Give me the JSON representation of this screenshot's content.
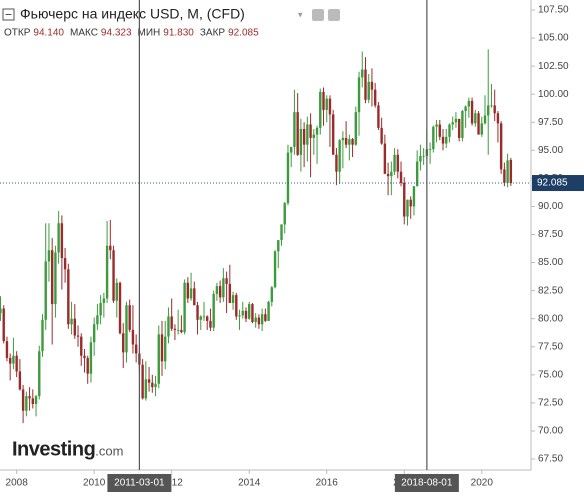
{
  "chart_data": {
    "type": "candlestick",
    "title": "Фьючерс на индекс USD, M, (CFD)",
    "header": [
      {
        "name": "ОТКР",
        "value": "94.140"
      },
      {
        "name": "МАКС",
        "value": "94.323"
      },
      {
        "name": "МИН",
        "value": "91.830"
      },
      {
        "name": "ЗАКР",
        "value": "92.085"
      }
    ],
    "logo": [
      "Investing",
      ".com"
    ],
    "up_color": "#3d9b3d",
    "down_color": "#9b2b2b",
    "x": [
      "2007-08",
      "2007-09",
      "2007-10",
      "2007-11",
      "2007-12",
      "2008-01",
      "2008-02",
      "2008-03",
      "2008-04",
      "2008-05",
      "2008-06",
      "2008-07",
      "2008-08",
      "2008-09",
      "2008-10",
      "2008-11",
      "2008-12",
      "2009-01",
      "2009-02",
      "2009-03",
      "2009-04",
      "2009-05",
      "2009-06",
      "2009-07",
      "2009-08",
      "2009-09",
      "2009-10",
      "2009-11",
      "2009-12",
      "2010-01",
      "2010-02",
      "2010-03",
      "2010-04",
      "2010-05",
      "2010-06",
      "2010-07",
      "2010-08",
      "2010-09",
      "2010-10",
      "2010-11",
      "2010-12",
      "2011-01",
      "2011-02",
      "2011-03",
      "2011-04",
      "2011-05",
      "2011-06",
      "2011-07",
      "2011-08",
      "2011-09",
      "2011-10",
      "2011-11",
      "2011-12",
      "2012-01",
      "2012-02",
      "2012-03",
      "2012-04",
      "2012-05",
      "2012-06",
      "2012-07",
      "2012-08",
      "2012-09",
      "2012-10",
      "2012-11",
      "2012-12",
      "2013-01",
      "2013-02",
      "2013-03",
      "2013-04",
      "2013-05",
      "2013-06",
      "2013-07",
      "2013-08",
      "2013-09",
      "2013-10",
      "2013-11",
      "2013-12",
      "2014-01",
      "2014-02",
      "2014-03",
      "2014-04",
      "2014-05",
      "2014-06",
      "2014-07",
      "2014-08",
      "2014-09",
      "2014-10",
      "2014-11",
      "2014-12",
      "2015-01",
      "2015-02",
      "2015-03",
      "2015-04",
      "2015-05",
      "2015-06",
      "2015-07",
      "2015-08",
      "2015-09",
      "2015-10",
      "2015-11",
      "2015-12",
      "2016-01",
      "2016-02",
      "2016-03",
      "2016-04",
      "2016-05",
      "2016-06",
      "2016-07",
      "2016-08",
      "2016-09",
      "2016-10",
      "2016-11",
      "2016-12",
      "2017-01",
      "2017-02",
      "2017-03",
      "2017-04",
      "2017-05",
      "2017-06",
      "2017-07",
      "2017-08",
      "2017-09",
      "2017-10",
      "2017-11",
      "2017-12",
      "2018-01",
      "2018-02",
      "2018-03",
      "2018-04",
      "2018-05",
      "2018-06",
      "2018-07",
      "2018-08",
      "2018-09",
      "2018-10",
      "2018-11",
      "2018-12",
      "2019-01",
      "2019-02",
      "2019-03",
      "2019-04",
      "2019-05",
      "2019-06",
      "2019-07",
      "2019-08",
      "2019-09",
      "2019-10",
      "2019-11",
      "2019-12",
      "2020-01",
      "2020-02",
      "2020-03",
      "2020-04",
      "2020-05",
      "2020-06",
      "2020-07",
      "2020-08",
      "2020-09",
      "2020-10"
    ],
    "ohlc": [
      [
        80.5,
        82.0,
        79.8,
        80.9
      ],
      [
        80.9,
        81.2,
        77.8,
        78.0
      ],
      [
        78.0,
        78.4,
        76.2,
        76.5
      ],
      [
        76.5,
        76.9,
        74.5,
        76.0
      ],
      [
        76.0,
        78.3,
        75.5,
        76.7
      ],
      [
        76.7,
        77.1,
        74.8,
        75.3
      ],
      [
        75.3,
        76.4,
        73.6,
        73.7
      ],
      [
        73.7,
        74.1,
        70.7,
        71.8
      ],
      [
        71.8,
        73.5,
        71.3,
        73.1
      ],
      [
        73.1,
        73.9,
        71.8,
        72.9
      ],
      [
        72.9,
        73.7,
        72.0,
        72.4
      ],
      [
        72.4,
        73.2,
        71.3,
        73.1
      ],
      [
        73.1,
        77.6,
        72.8,
        77.1
      ],
      [
        77.1,
        80.4,
        76.6,
        79.9
      ],
      [
        79.9,
        88.5,
        79.0,
        85.1
      ],
      [
        85.1,
        88.5,
        83.3,
        86.1
      ],
      [
        86.1,
        87.2,
        77.7,
        81.3
      ],
      [
        81.3,
        86.5,
        80.1,
        85.9
      ],
      [
        85.9,
        89.6,
        84.9,
        88.5
      ],
      [
        88.5,
        89.2,
        82.6,
        85.4
      ],
      [
        85.4,
        86.3,
        83.2,
        84.4
      ],
      [
        84.4,
        84.9,
        79.1,
        79.5
      ],
      [
        79.5,
        81.5,
        78.6,
        80.0
      ],
      [
        80.0,
        81.3,
        78.2,
        78.5
      ],
      [
        78.5,
        79.4,
        77.5,
        78.4
      ],
      [
        78.4,
        78.7,
        75.8,
        76.7
      ],
      [
        76.7,
        77.3,
        75.2,
        76.5
      ],
      [
        76.5,
        76.7,
        74.2,
        75.1
      ],
      [
        75.1,
        78.4,
        74.3,
        77.9
      ],
      [
        77.9,
        80.1,
        76.7,
        79.5
      ],
      [
        79.5,
        81.3,
        79.0,
        80.3
      ],
      [
        80.3,
        82.1,
        79.5,
        81.4
      ],
      [
        81.4,
        82.3,
        80.1,
        81.8
      ],
      [
        81.8,
        88.7,
        81.4,
        86.5
      ],
      [
        86.5,
        88.8,
        85.3,
        86.1
      ],
      [
        86.1,
        86.5,
        81.4,
        81.6
      ],
      [
        81.6,
        83.6,
        80.1,
        83.2
      ],
      [
        83.2,
        83.3,
        78.6,
        78.7
      ],
      [
        78.7,
        79.6,
        75.6,
        77.0
      ],
      [
        77.0,
        81.5,
        76.1,
        81.2
      ],
      [
        81.2,
        81.7,
        78.8,
        79.0
      ],
      [
        79.0,
        81.2,
        76.9,
        77.7
      ],
      [
        77.7,
        78.6,
        76.1,
        76.9
      ],
      [
        76.9,
        77.5,
        75.2,
        75.9
      ],
      [
        75.9,
        76.4,
        72.8,
        72.9
      ],
      [
        72.9,
        76.2,
        72.7,
        74.6
      ],
      [
        74.6,
        75.7,
        73.5,
        74.3
      ],
      [
        74.3,
        75.0,
        73.4,
        73.9
      ],
      [
        73.9,
        74.9,
        73.1,
        74.2
      ],
      [
        74.2,
        79.4,
        73.8,
        78.6
      ],
      [
        78.6,
        79.8,
        74.9,
        76.2
      ],
      [
        76.2,
        79.8,
        75.5,
        78.4
      ],
      [
        78.4,
        81.0,
        77.8,
        80.2
      ],
      [
        80.2,
        81.8,
        78.9,
        79.1
      ],
      [
        79.1,
        79.5,
        78.1,
        79.0
      ],
      [
        79.0,
        80.8,
        78.6,
        79.0
      ],
      [
        79.0,
        80.3,
        78.7,
        78.8
      ],
      [
        78.8,
        83.5,
        78.6,
        83.2
      ],
      [
        83.2,
        83.7,
        81.4,
        81.8
      ],
      [
        81.8,
        84.1,
        81.6,
        82.7
      ],
      [
        82.7,
        83.3,
        81.2,
        81.2
      ],
      [
        81.2,
        81.5,
        78.6,
        79.9
      ],
      [
        79.9,
        80.3,
        79.0,
        80.2
      ],
      [
        80.2,
        81.5,
        79.8,
        80.2
      ],
      [
        80.2,
        80.3,
        79.0,
        79.8
      ],
      [
        79.8,
        80.9,
        78.9,
        79.2
      ],
      [
        79.2,
        82.5,
        78.9,
        82.2
      ],
      [
        82.2,
        83.2,
        81.6,
        82.9
      ],
      [
        82.9,
        83.4,
        81.4,
        81.9
      ],
      [
        81.9,
        84.5,
        81.5,
        83.6
      ],
      [
        83.6,
        84.2,
        80.5,
        83.1
      ],
      [
        83.1,
        84.8,
        81.4,
        81.4
      ],
      [
        81.4,
        82.4,
        80.8,
        82.1
      ],
      [
        82.1,
        82.3,
        79.9,
        80.2
      ],
      [
        80.2,
        80.8,
        79.0,
        80.3
      ],
      [
        80.3,
        81.5,
        80.0,
        80.7
      ],
      [
        80.7,
        81.0,
        79.7,
        80.0
      ],
      [
        80.0,
        81.5,
        79.9,
        81.3
      ],
      [
        81.3,
        81.4,
        79.6,
        79.7
      ],
      [
        79.7,
        80.5,
        79.2,
        80.1
      ],
      [
        80.1,
        80.4,
        79.1,
        79.5
      ],
      [
        79.5,
        80.9,
        78.9,
        80.4
      ],
      [
        80.4,
        80.9,
        79.7,
        79.8
      ],
      [
        79.8,
        81.6,
        79.8,
        81.5
      ],
      [
        81.5,
        82.9,
        81.1,
        82.8
      ],
      [
        82.8,
        86.1,
        82.7,
        86.0
      ],
      [
        86.0,
        87.0,
        84.5,
        87.0
      ],
      [
        87.0,
        88.4,
        86.5,
        88.4
      ],
      [
        88.4,
        90.4,
        87.6,
        90.3
      ],
      [
        90.3,
        95.5,
        90.1,
        94.8
      ],
      [
        94.8,
        95.3,
        93.5,
        95.3
      ],
      [
        95.3,
        100.4,
        94.6,
        98.4
      ],
      [
        98.4,
        100.1,
        94.5,
        94.6
      ],
      [
        94.6,
        97.8,
        93.1,
        96.9
      ],
      [
        96.9,
        97.5,
        93.5,
        95.5
      ],
      [
        95.5,
        98.0,
        94.0,
        97.3
      ],
      [
        97.3,
        98.3,
        92.6,
        96.1
      ],
      [
        96.1,
        96.9,
        94.6,
        96.4
      ],
      [
        96.4,
        97.2,
        93.8,
        97.0
      ],
      [
        97.0,
        100.5,
        96.4,
        100.2
      ],
      [
        100.2,
        100.6,
        97.2,
        98.6
      ],
      [
        98.6,
        99.9,
        97.5,
        99.6
      ],
      [
        99.6,
        99.9,
        95.3,
        98.2
      ],
      [
        98.2,
        98.6,
        94.6,
        94.6
      ],
      [
        94.6,
        95.2,
        91.9,
        93.1
      ],
      [
        93.1,
        96.0,
        92.0,
        95.9
      ],
      [
        95.9,
        96.7,
        93.4,
        96.1
      ],
      [
        96.1,
        97.6,
        95.2,
        95.5
      ],
      [
        95.5,
        96.4,
        94.1,
        96.0
      ],
      [
        96.0,
        96.1,
        94.4,
        95.5
      ],
      [
        95.5,
        98.9,
        95.4,
        98.4
      ],
      [
        98.4,
        102.0,
        96.3,
        101.5
      ],
      [
        101.5,
        103.8,
        100.6,
        102.2
      ],
      [
        102.2,
        103.3,
        99.2,
        99.5
      ],
      [
        99.5,
        101.8,
        99.2,
        101.1
      ],
      [
        101.1,
        102.3,
        98.9,
        100.4
      ],
      [
        100.4,
        101.0,
        98.8,
        99.0
      ],
      [
        99.0,
        99.3,
        96.8,
        97.0
      ],
      [
        97.0,
        97.9,
        95.5,
        95.6
      ],
      [
        95.6,
        96.4,
        92.9,
        92.9
      ],
      [
        92.9,
        93.9,
        91.0,
        92.7
      ],
      [
        92.7,
        94.0,
        91.0,
        93.1
      ],
      [
        93.1,
        95.2,
        92.8,
        94.6
      ],
      [
        94.6,
        95.1,
        92.5,
        93.1
      ],
      [
        93.1,
        94.0,
        91.8,
        92.1
      ],
      [
        92.1,
        92.6,
        88.4,
        89.1
      ],
      [
        89.1,
        90.6,
        88.3,
        90.6
      ],
      [
        90.6,
        90.9,
        88.9,
        90.0
      ],
      [
        90.0,
        91.8,
        89.2,
        91.8
      ],
      [
        91.8,
        95.0,
        91.8,
        94.0
      ],
      [
        94.0,
        95.5,
        93.2,
        94.5
      ],
      [
        94.5,
        95.2,
        93.7,
        94.5
      ],
      [
        94.5,
        96.9,
        94.2,
        95.1
      ],
      [
        95.1,
        95.7,
        93.8,
        95.1
      ],
      [
        95.1,
        97.2,
        94.8,
        97.1
      ],
      [
        97.1,
        97.7,
        95.7,
        97.3
      ],
      [
        97.3,
        97.7,
        95.9,
        96.2
      ],
      [
        96.2,
        96.9,
        95.0,
        95.6
      ],
      [
        95.6,
        96.9,
        95.2,
        96.2
      ],
      [
        96.2,
        97.4,
        95.7,
        97.3
      ],
      [
        97.3,
        98.0,
        96.8,
        97.5
      ],
      [
        97.5,
        98.4,
        97.0,
        97.8
      ],
      [
        97.8,
        97.8,
        95.8,
        96.1
      ],
      [
        96.1,
        98.6,
        95.8,
        98.5
      ],
      [
        98.5,
        99.0,
        97.0,
        98.9
      ],
      [
        98.9,
        99.7,
        97.9,
        99.4
      ],
      [
        99.4,
        99.7,
        97.2,
        97.4
      ],
      [
        97.4,
        98.6,
        97.1,
        98.3
      ],
      [
        98.3,
        98.5,
        96.4,
        96.4
      ],
      [
        96.4,
        98.0,
        96.2,
        97.4
      ],
      [
        97.4,
        99.9,
        97.3,
        98.1
      ],
      [
        98.1,
        104.0,
        94.6,
        99.0
      ],
      [
        99.0,
        100.9,
        98.8,
        99.0
      ],
      [
        99.0,
        100.4,
        97.6,
        98.3
      ],
      [
        98.3,
        98.5,
        95.7,
        97.4
      ],
      [
        97.4,
        97.6,
        92.9,
        93.3
      ],
      [
        93.3,
        93.9,
        91.8,
        92.1
      ],
      [
        92.1,
        94.7,
        91.7,
        94.1
      ],
      [
        94.14,
        94.323,
        91.83,
        92.085
      ]
    ],
    "ylim": [
      67.5,
      107.5
    ],
    "yticks": [
      {
        "value": 67.5,
        "label": "67.50"
      },
      {
        "value": 70,
        "label": "70.00"
      },
      {
        "value": 72.5,
        "label": "72.50"
      },
      {
        "value": 75,
        "label": "75.00"
      },
      {
        "value": 77.5,
        "label": "77.50"
      },
      {
        "value": 80,
        "label": "80.00"
      },
      {
        "value": 82.5,
        "label": "82.50"
      },
      {
        "value": 85,
        "label": "85.00"
      },
      {
        "value": 87.5,
        "label": "87.50"
      },
      {
        "value": 90,
        "label": "90.00"
      },
      {
        "value": 92.5,
        "label": "92.50"
      },
      {
        "value": 95,
        "label": "95.00"
      },
      {
        "value": 97.5,
        "label": "97.50"
      },
      {
        "value": 100,
        "label": "100.00"
      },
      {
        "value": 102.5,
        "label": "102.50"
      },
      {
        "value": 105,
        "label": "105.00"
      },
      {
        "value": 107.5,
        "label": "107.50"
      }
    ],
    "xticks": [
      {
        "value": "2008-01",
        "label": "2008"
      },
      {
        "value": "2010-01",
        "label": "2010"
      },
      {
        "value": "2012-01",
        "label": "2012"
      },
      {
        "value": "2014-01",
        "label": "2014"
      },
      {
        "value": "2016-01",
        "label": "2016"
      },
      {
        "value": "2018-01",
        "label": "2018"
      },
      {
        "value": "2020-01",
        "label": "2020"
      }
    ],
    "crosshairs": [
      {
        "value": "2011-03",
        "label": "2011-03-01"
      },
      {
        "value": "2018-08",
        "label": "2018-08-01"
      }
    ],
    "last_price": {
      "value": 92.085,
      "label": "92.085"
    }
  }
}
